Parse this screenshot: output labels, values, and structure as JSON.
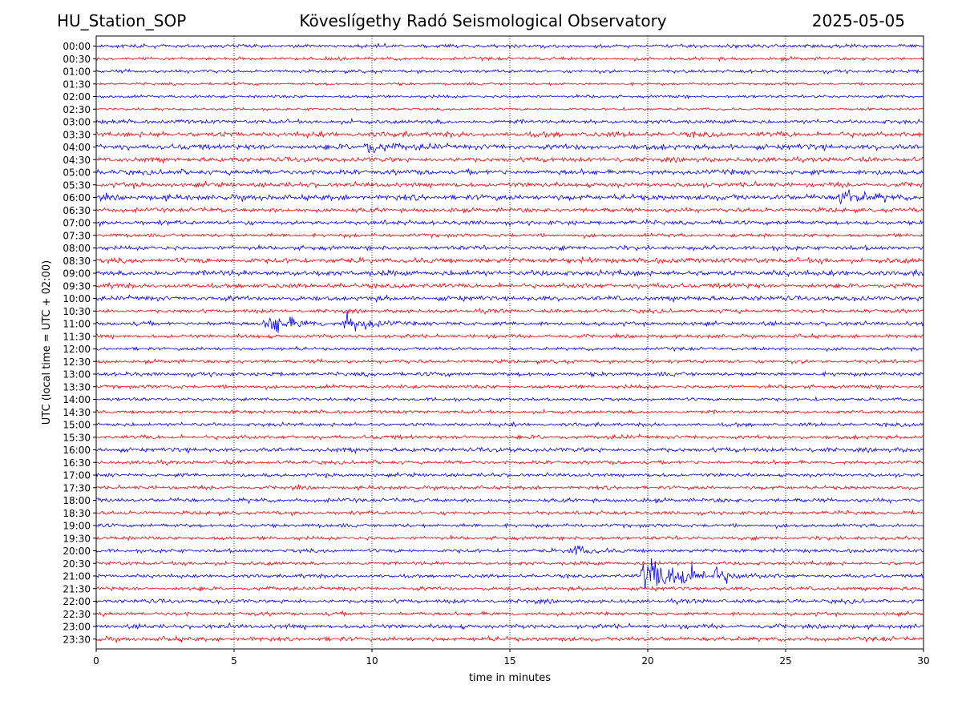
{
  "header": {
    "station": "HU_Station_SOP",
    "observatory": "Köveslígethy Radó Seismological Observatory",
    "date": "2025-05-05"
  },
  "chart_data": {
    "type": "line",
    "title": "Köveslígethy Radó Seismological Observatory",
    "xlabel": "time in minutes",
    "ylabel": "UTC (local time = UTC + 02:00)",
    "xlim": [
      0,
      30
    ],
    "xticks": [
      0,
      5,
      10,
      15,
      20,
      25,
      30
    ],
    "grid": "vertical dotted at x ticks",
    "colors": [
      "#0000ff",
      "#ff0000"
    ],
    "row_labels": [
      "00:00",
      "00:30",
      "01:00",
      "01:30",
      "02:00",
      "02:30",
      "03:00",
      "03:30",
      "04:00",
      "04:30",
      "05:00",
      "05:30",
      "06:00",
      "06:30",
      "07:00",
      "07:30",
      "08:00",
      "08:30",
      "09:00",
      "09:30",
      "10:00",
      "10:30",
      "11:00",
      "11:30",
      "12:00",
      "12:30",
      "13:00",
      "13:30",
      "14:00",
      "14:30",
      "15:00",
      "15:30",
      "16:00",
      "16:30",
      "17:00",
      "17:30",
      "18:00",
      "18:30",
      "19:00",
      "19:30",
      "20:00",
      "20:30",
      "21:00",
      "21:30",
      "22:00",
      "22:30",
      "23:00",
      "23:30"
    ],
    "row_amplitude": [
      1.0,
      0.9,
      0.9,
      0.7,
      0.8,
      0.7,
      1.1,
      1.4,
      1.5,
      1.3,
      1.4,
      1.3,
      1.5,
      1.2,
      1.2,
      1.0,
      1.2,
      1.4,
      1.5,
      1.3,
      1.3,
      1.0,
      1.1,
      1.0,
      0.9,
      1.0,
      1.1,
      1.0,
      0.9,
      0.9,
      1.0,
      1.1,
      1.2,
      1.0,
      1.0,
      1.0,
      1.1,
      1.0,
      1.0,
      1.0,
      1.0,
      1.0,
      1.0,
      1.0,
      1.1,
      1.0,
      1.2,
      1.2
    ],
    "events": [
      {
        "row": "04:00",
        "minute": 9.8,
        "amplitude": 4
      },
      {
        "row": "06:00",
        "minute": 27.0,
        "amplitude": 5
      },
      {
        "row": "11:00",
        "minute": 6.3,
        "amplitude": 6
      },
      {
        "row": "11:00",
        "minute": 9.1,
        "amplitude": 5
      },
      {
        "row": "20:00",
        "minute": 17.3,
        "amplitude": 3
      },
      {
        "row": "21:00",
        "minute": 19.9,
        "amplitude": 10
      },
      {
        "row": "21:00",
        "minute": 21.0,
        "amplitude": 6
      },
      {
        "row": "21:00",
        "minute": 22.5,
        "amplitude": 3
      }
    ]
  }
}
